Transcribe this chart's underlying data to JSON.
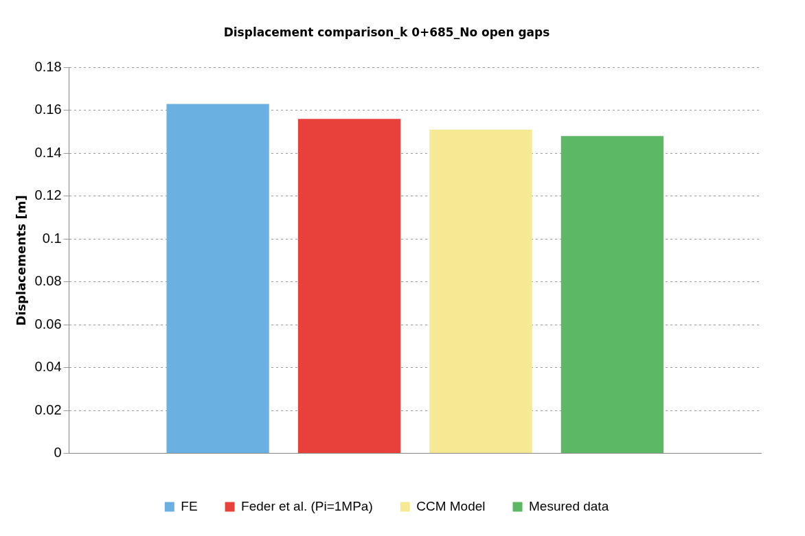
{
  "chart_data": {
    "type": "bar",
    "title": "Displacement comparison_k 0+685_No open gaps",
    "ylabel": "Displacements [m]",
    "categories": [
      null
    ],
    "series": [
      {
        "name": "FE",
        "color": "#6ab0e0",
        "values": [
          0.163
        ]
      },
      {
        "name": "Feder et al. (Pi=1MPa)",
        "color": "#e8403a",
        "values": [
          0.156
        ]
      },
      {
        "name": "CCM Model",
        "color": "#f5e993",
        "values": [
          0.151
        ]
      },
      {
        "name": "Mesured data",
        "color": "#5cb865",
        "values": [
          0.148
        ]
      }
    ],
    "ylim": [
      0,
      0.18
    ],
    "yticks": [
      0,
      0.02,
      0.04,
      0.06,
      0.08,
      0.1,
      0.12,
      0.14,
      0.16,
      0.18
    ],
    "grid": "y",
    "legend": "bottom"
  }
}
